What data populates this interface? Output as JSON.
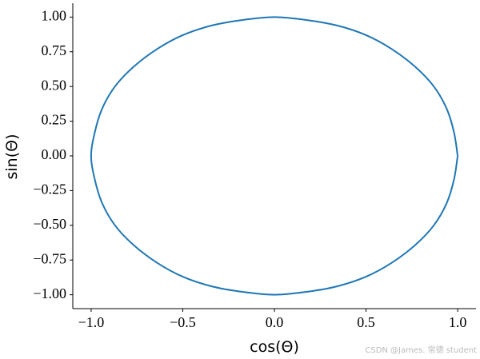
{
  "chart_data": {
    "type": "line",
    "xlabel": "cos(Θ)",
    "ylabel": "sin(Θ)",
    "x": [
      1,
      0.98,
      0.94,
      0.87,
      0.77,
      0.64,
      0.5,
      0.34,
      0.17,
      0,
      -0.17,
      -0.34,
      -0.5,
      -0.64,
      -0.77,
      -0.87,
      -0.94,
      -0.98,
      -1,
      -0.98,
      -0.94,
      -0.87,
      -0.77,
      -0.64,
      -0.5,
      -0.34,
      -0.17,
      0,
      0.17,
      0.34,
      0.5,
      0.64,
      0.77,
      0.87,
      0.94,
      0.98,
      1
    ],
    "values": [
      0,
      0.17,
      0.34,
      0.5,
      0.64,
      0.77,
      0.87,
      0.94,
      0.98,
      1,
      0.98,
      0.94,
      0.87,
      0.77,
      0.64,
      0.5,
      0.34,
      0.17,
      0,
      -0.17,
      -0.34,
      -0.5,
      -0.64,
      -0.77,
      -0.87,
      -0.94,
      -0.98,
      -1,
      -0.98,
      -0.94,
      -0.87,
      -0.77,
      -0.64,
      -0.5,
      -0.34,
      -0.17,
      0
    ],
    "color": "#1f77b4",
    "xlim": [
      -1.1,
      1.1
    ],
    "ylim": [
      -1.1,
      1.1
    ],
    "xticks": [
      {
        "value": -1,
        "label": "−1.0"
      },
      {
        "value": -0.5,
        "label": "−0.5"
      },
      {
        "value": 0,
        "label": "0.0"
      },
      0.5,
      {
        "value": 1,
        "label": "1.0"
      }
    ],
    "yticks": [
      {
        "value": -1,
        "label": "−1.00"
      },
      {
        "value": -0.75,
        "label": "−0.75"
      },
      {
        "value": -0.5,
        "label": "−0.50"
      },
      {
        "value": -0.25,
        "label": "−0.25"
      },
      {
        "value": 0,
        "label": "0.00"
      },
      0.25,
      {
        "value": 0.5,
        "label": "0.50"
      },
      0.75,
      {
        "value": 1,
        "label": "1.00"
      }
    ],
    "watermark": "CSDN @James. 常德 student"
  }
}
